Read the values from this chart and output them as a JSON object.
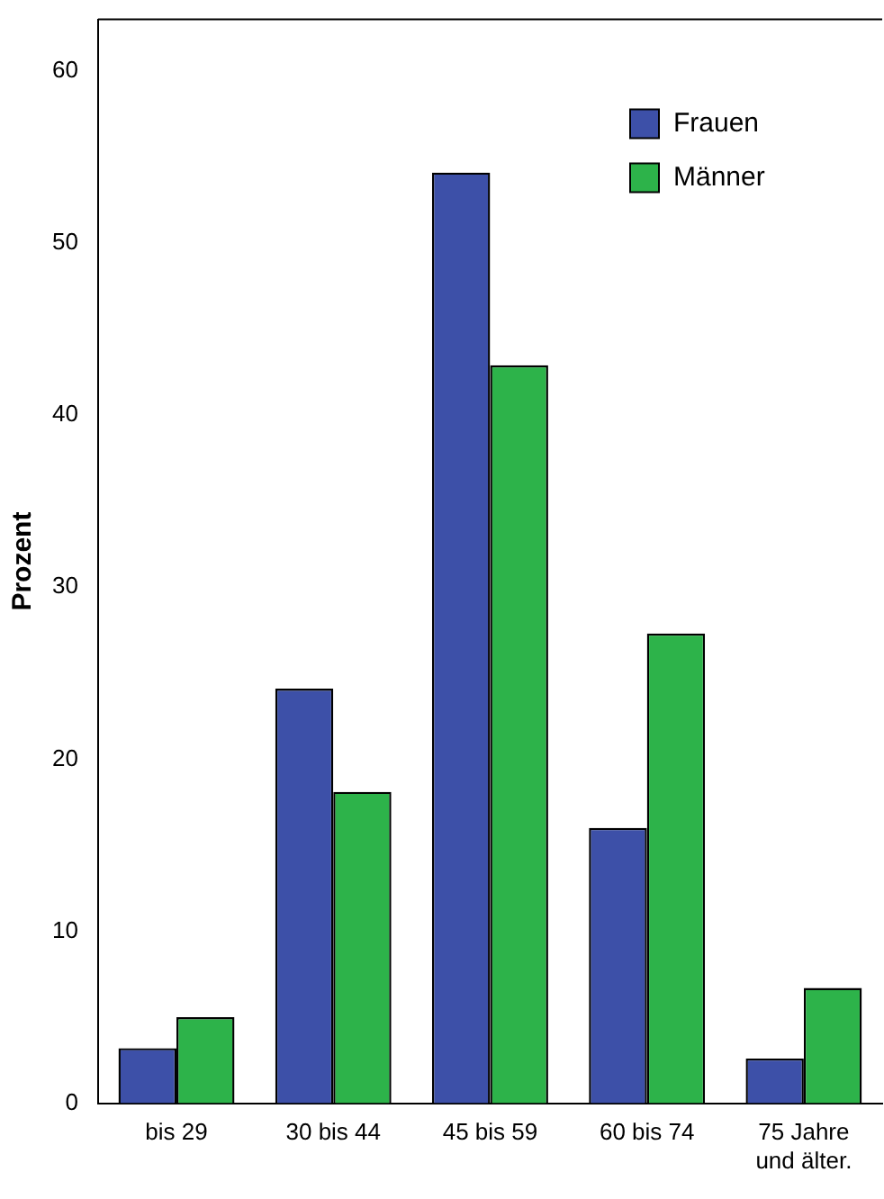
{
  "chart_data": {
    "type": "bar",
    "ylabel": "Prozent",
    "categories": [
      "bis 29",
      "30 bis 44",
      "45 bis 59",
      "60 bis 74",
      "75 Jahre\nund älter."
    ],
    "series": [
      {
        "name": "Frauen",
        "color": "#3d50a8",
        "values": [
          3.2,
          24.1,
          54.1,
          16.0,
          2.6
        ]
      },
      {
        "name": "Männer",
        "color": "#2db34a",
        "values": [
          5.0,
          18.1,
          42.9,
          27.3,
          6.7
        ]
      }
    ],
    "ylim": [
      0,
      63
    ],
    "yticks": [
      0,
      10,
      20,
      30,
      40,
      50,
      60
    ],
    "grid": false,
    "legend": "top right"
  }
}
